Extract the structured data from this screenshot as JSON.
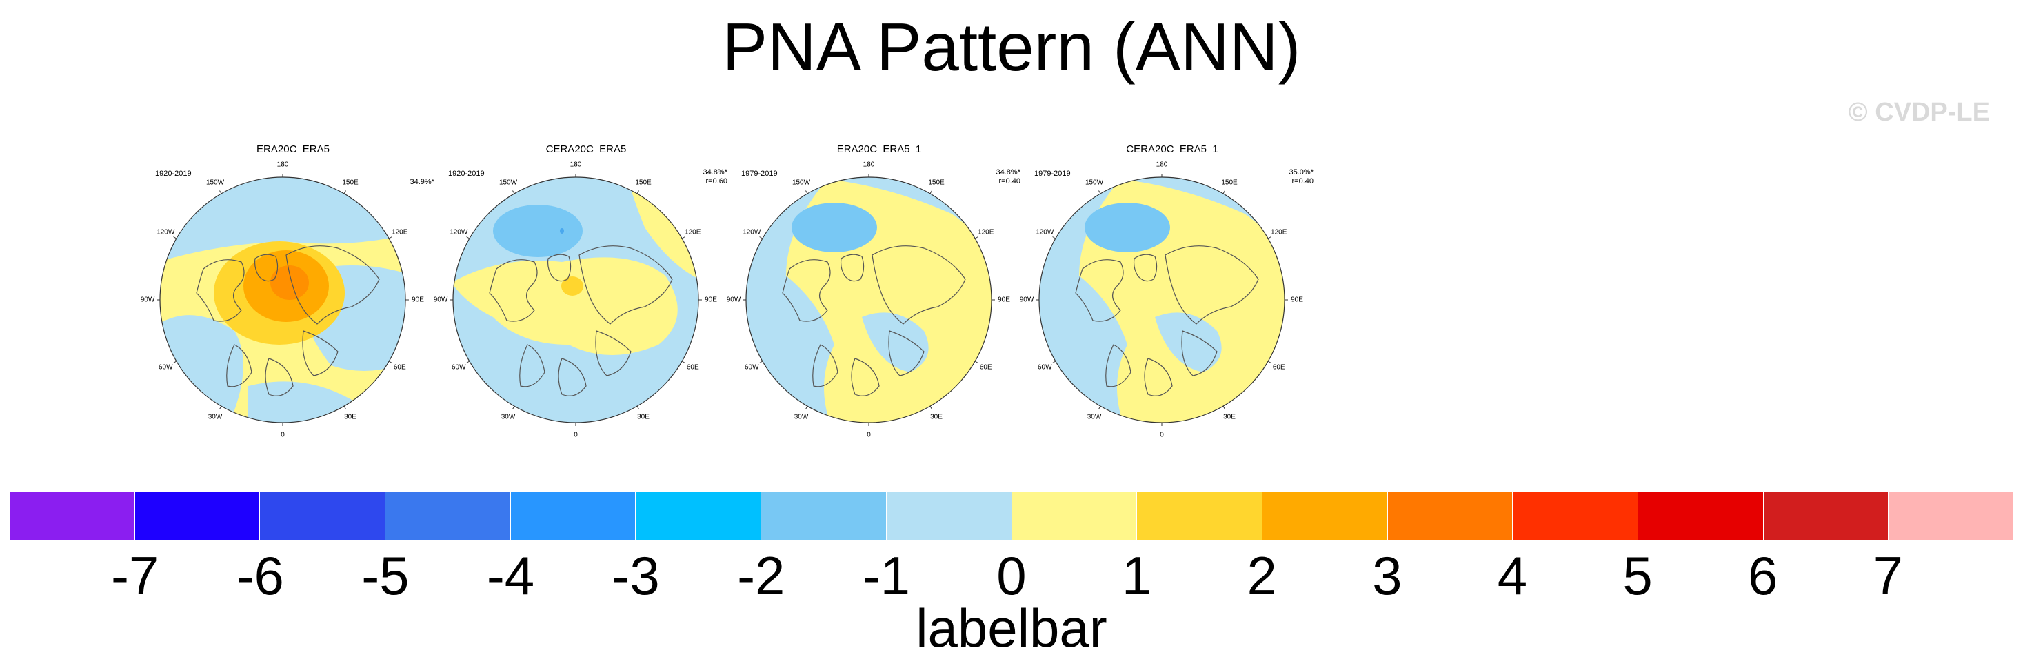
{
  "title": "PNA Pattern (ANN)",
  "copyright": "© CVDP-LE",
  "panels": [
    {
      "title": "ERA20C_ERA5",
      "period": "1920-2019",
      "pct": "34.9%*",
      "r": "",
      "style": "warm"
    },
    {
      "title": "CERA20C_ERA5",
      "period": "1920-2019",
      "pct": "34.8%*",
      "r": "r=0.60",
      "style": "mixed"
    },
    {
      "title": "ERA20C_ERA5_1",
      "period": "1979-2019",
      "pct": "34.8%*",
      "r": "r=0.40",
      "style": "cool"
    },
    {
      "title": "CERA20C_ERA5_1",
      "period": "1979-2019",
      "pct": "35.0%*",
      "r": "r=0.40",
      "style": "cool"
    }
  ],
  "lon_labels": [
    "180",
    "150E",
    "120E",
    "90E",
    "60E",
    "30E",
    "0",
    "30W",
    "60W",
    "90W",
    "120W",
    "150W"
  ],
  "labelbar": {
    "colors": [
      "#8b1ef0",
      "#1e00ff",
      "#2e48ee",
      "#3a78ee",
      "#2896ff",
      "#00c0ff",
      "#78c8f4",
      "#b4e0f4",
      "#fff78a",
      "#ffd62e",
      "#ffaa00",
      "#ff7800",
      "#ff3000",
      "#e60000",
      "#d21e1e",
      "#ffb4b4"
    ],
    "ticks": [
      "-7",
      "-6",
      "-5",
      "-4",
      "-3",
      "-2",
      "-1",
      "0",
      "1",
      "2",
      "3",
      "4",
      "5",
      "6",
      "7"
    ],
    "caption": "labelbar"
  }
}
